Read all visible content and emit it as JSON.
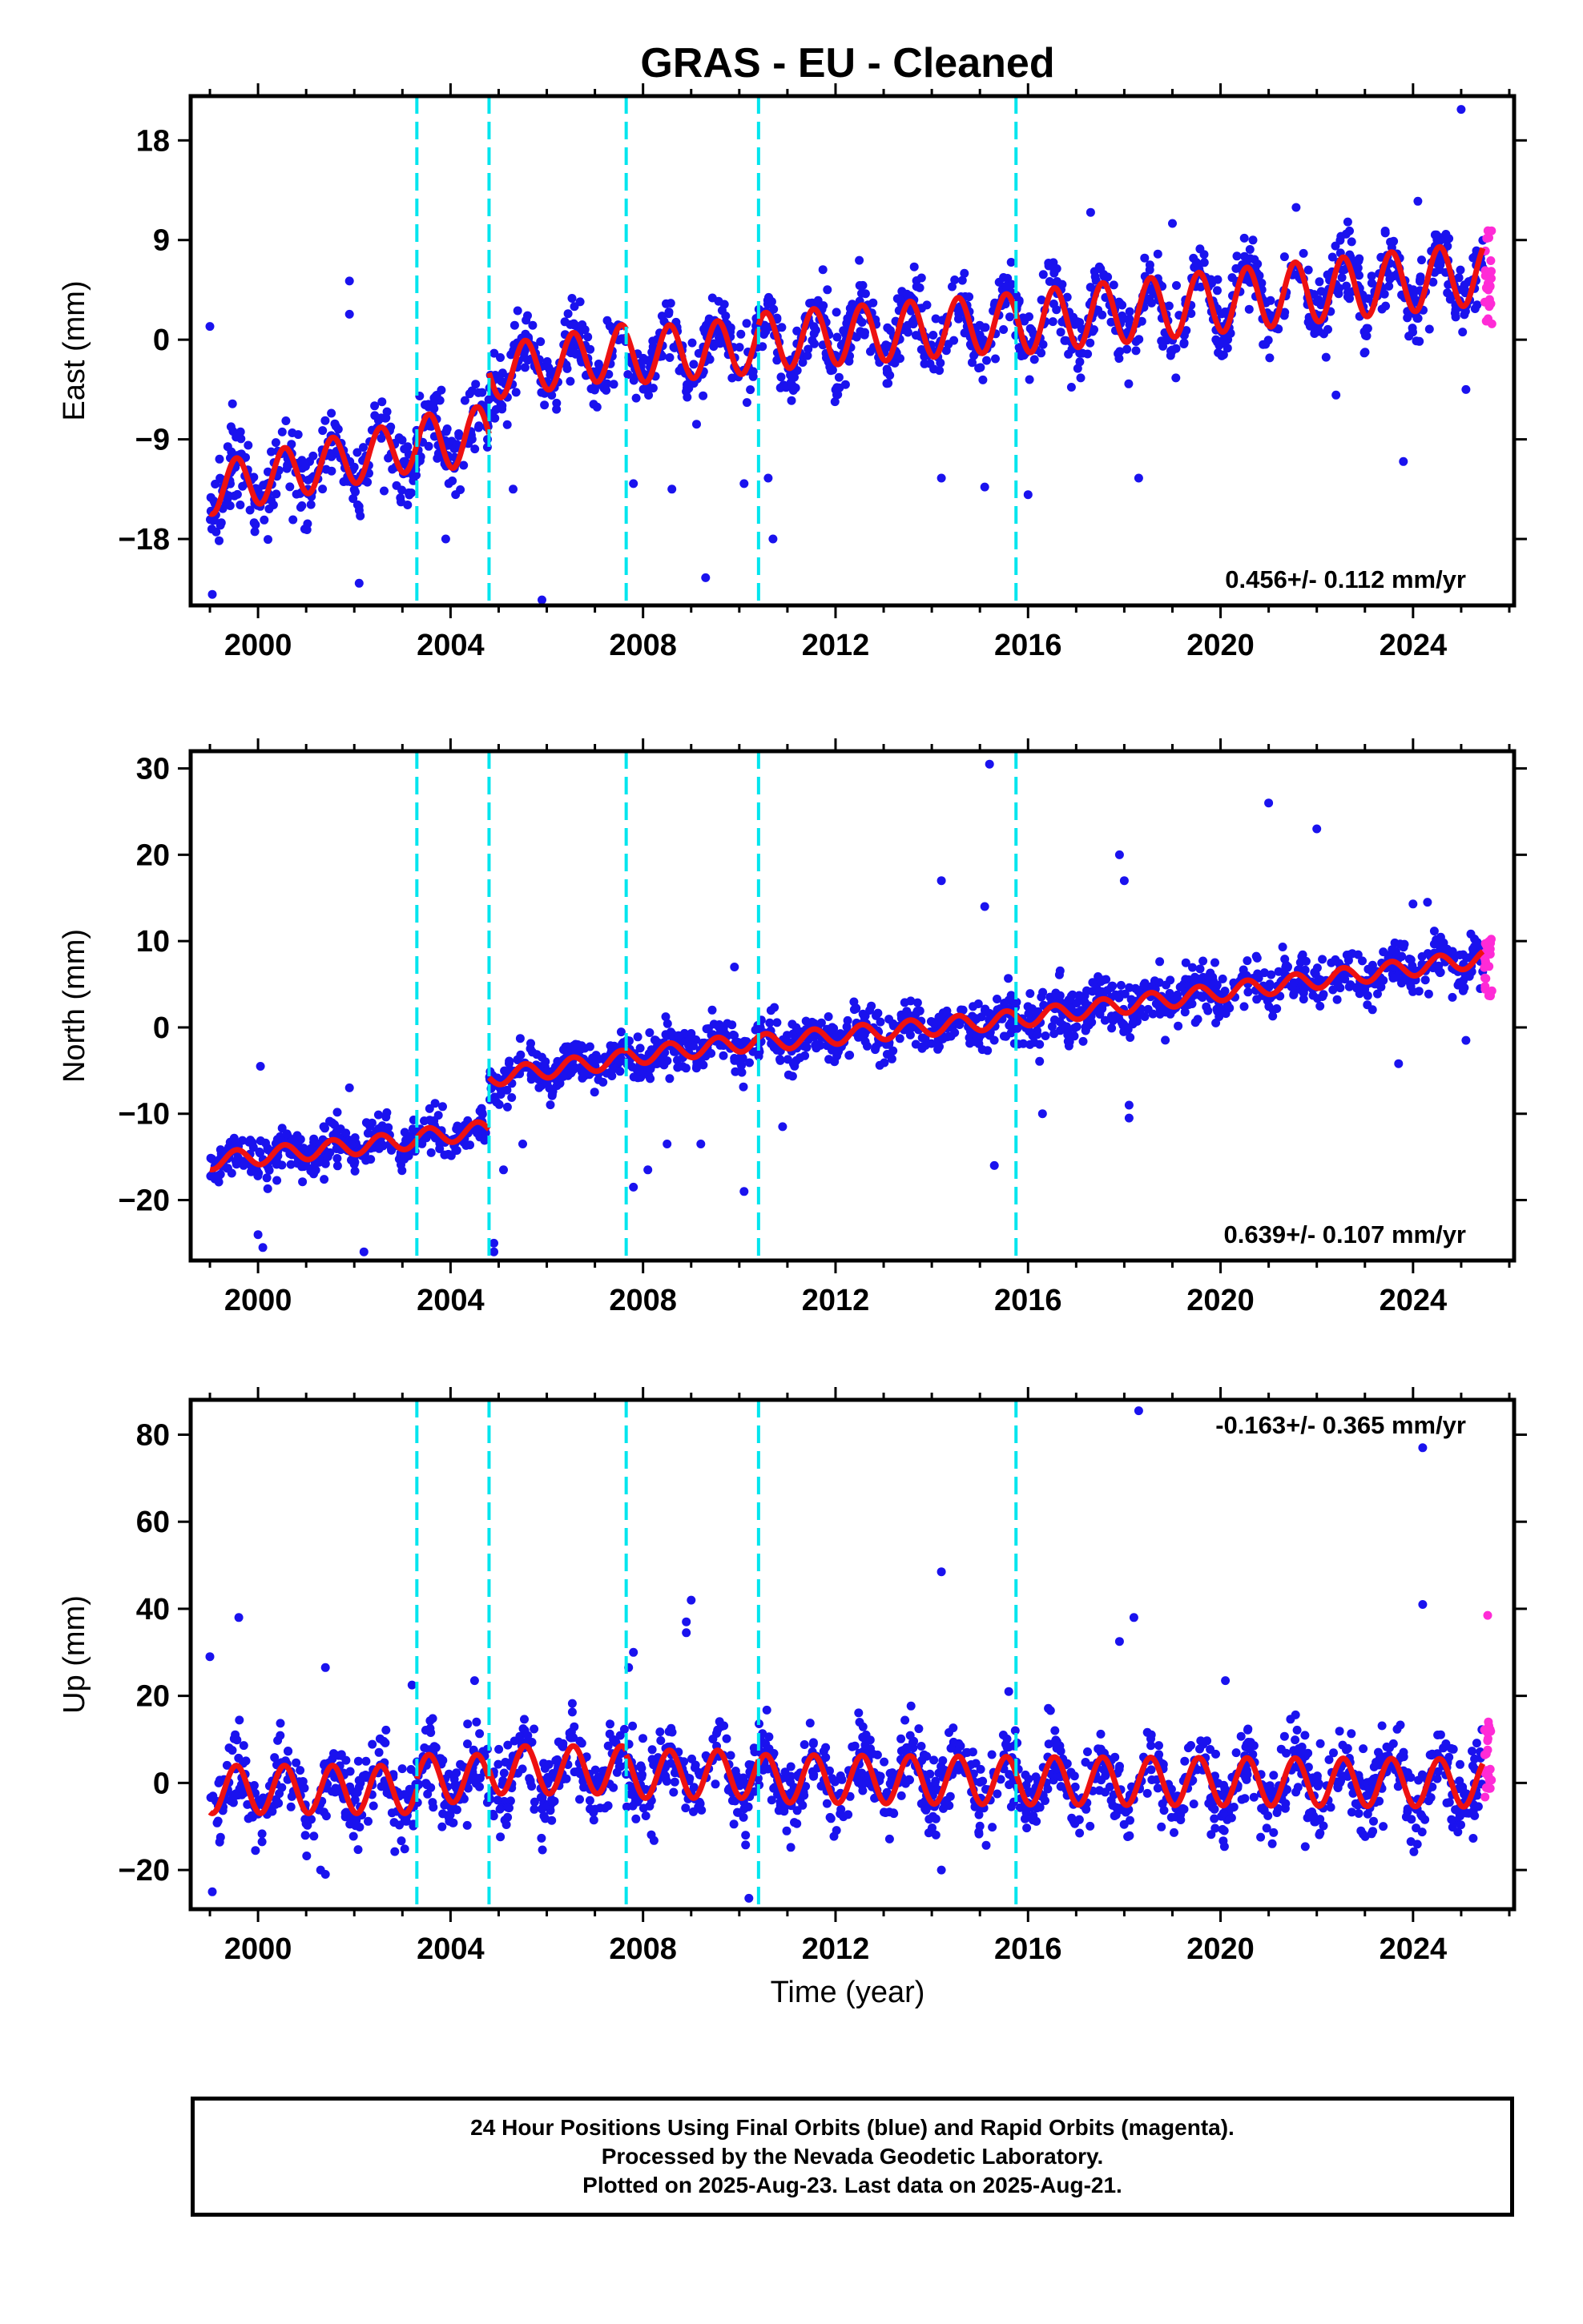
{
  "title": "GRAS  - EU - Cleaned",
  "xlabel": "Time (year)",
  "colors": {
    "final": "#1a12ee",
    "rapid": "#ff2bd6",
    "model": "#ee1111",
    "breaks": "#00e5ee",
    "axes": "#000000"
  },
  "caption": [
    "24 Hour Positions Using Final Orbits (blue) and Rapid Orbits (magenta).",
    "Processed by the Nevada Geodetic Laboratory.",
    "Plotted on 2025-Aug-23. Last data on 2025-Aug-21."
  ],
  "chart_data": [
    {
      "type": "scatter",
      "component": "east",
      "ylabel": "East (mm)",
      "velocity_label": "0.456+/- 0.112 mm/yr",
      "legend_position": "bottom-right",
      "xlim": [
        1998.6,
        2026.1
      ],
      "ylim": [
        -24,
        22
      ],
      "yticks": [
        -18,
        -9,
        0,
        9,
        18
      ],
      "xticks": [
        2000,
        2004,
        2008,
        2012,
        2016,
        2020,
        2024
      ],
      "break_lines": [
        2003.3,
        2004.8,
        2007.65,
        2010.4,
        2015.75
      ],
      "segments": [
        {
          "x0": 1999.0,
          "x1": 2003.3,
          "y0": -13.5,
          "y1": -9.5,
          "amp": 2.3,
          "scatter": 1.6
        },
        {
          "x0": 2003.3,
          "x1": 2004.8,
          "y0": -9.5,
          "y1": -8.5,
          "amp": 2.6,
          "scatter": 1.6
        },
        {
          "x0": 2004.8,
          "x1": 2007.65,
          "y0": -3.0,
          "y1": -1.0,
          "amp": 2.4,
          "scatter": 1.5
        },
        {
          "x0": 2007.65,
          "x1": 2010.4,
          "y0": -1.5,
          "y1": -0.5,
          "amp": 2.5,
          "scatter": 1.5
        },
        {
          "x0": 2010.4,
          "x1": 2015.75,
          "y0": -0.2,
          "y1": 1.6,
          "amp": 2.6,
          "scatter": 1.6
        },
        {
          "x0": 2015.75,
          "x1": 2025.45,
          "y0": 1.5,
          "y1": 6.0,
          "amp": 2.8,
          "scatter": 1.7
        }
      ],
      "outliers": [
        [
          1999.05,
          -23
        ],
        [
          1999.0,
          1.2
        ],
        [
          2001.9,
          5.3
        ],
        [
          2001.9,
          2.3
        ],
        [
          2002.0,
          -11.5
        ],
        [
          2002.1,
          -22
        ],
        [
          2003.9,
          -18
        ],
        [
          2005.3,
          -13.5
        ],
        [
          2005.9,
          -23.5
        ],
        [
          2007.8,
          -13
        ],
        [
          2008.6,
          -13.5
        ],
        [
          2009.3,
          -21.5
        ],
        [
          2010.1,
          -13
        ],
        [
          2010.6,
          -12.5
        ],
        [
          2010.7,
          -18
        ],
        [
          2014.2,
          -12.5
        ],
        [
          2015.1,
          -13.3
        ],
        [
          2016.0,
          -14
        ],
        [
          2017.3,
          11.5
        ],
        [
          2018.3,
          -12.5
        ],
        [
          2022.4,
          -5
        ],
        [
          2023.8,
          -11
        ],
        [
          2024.1,
          12.5
        ],
        [
          2025.0,
          20.8
        ],
        [
          2025.1,
          -4.5
        ],
        [
          2019.0,
          10.5
        ]
      ],
      "rapid": {
        "x0": 2025.48,
        "x1": 2025.64,
        "center": 6.0,
        "spread": 4.8
      }
    },
    {
      "type": "scatter",
      "component": "north",
      "ylabel": "North (mm)",
      "velocity_label": "0.639+/- 0.107 mm/yr",
      "legend_position": "bottom-right",
      "xlim": [
        1998.6,
        2026.1
      ],
      "ylim": [
        -27,
        32
      ],
      "yticks": [
        -20,
        -10,
        0,
        10,
        20,
        30
      ],
      "xticks": [
        2000,
        2004,
        2008,
        2012,
        2016,
        2020,
        2024
      ],
      "break_lines": [
        2003.3,
        2004.8,
        2007.65,
        2010.4,
        2015.75
      ],
      "segments": [
        {
          "x0": 1999.0,
          "x1": 2003.3,
          "y0": -15.5,
          "y1": -13.0,
          "amp": 1.0,
          "scatter": 1.3
        },
        {
          "x0": 2003.3,
          "x1": 2004.8,
          "y0": -12.8,
          "y1": -11.8,
          "amp": 1.0,
          "scatter": 1.3
        },
        {
          "x0": 2004.8,
          "x1": 2007.65,
          "y0": -5.8,
          "y1": -3.6,
          "amp": 1.0,
          "scatter": 1.3
        },
        {
          "x0": 2007.65,
          "x1": 2010.4,
          "y0": -3.4,
          "y1": -1.6,
          "amp": 1.0,
          "scatter": 1.3
        },
        {
          "x0": 2010.4,
          "x1": 2015.75,
          "y0": -1.8,
          "y1": 1.0,
          "amp": 1.0,
          "scatter": 1.4
        },
        {
          "x0": 2015.75,
          "x1": 2025.45,
          "y0": 1.0,
          "y1": 8.0,
          "amp": 1.0,
          "scatter": 1.5
        }
      ],
      "outliers": [
        [
          2000.0,
          -24
        ],
        [
          2000.05,
          -4.5
        ],
        [
          2000.1,
          -25.5
        ],
        [
          2002.2,
          -26
        ],
        [
          2001.9,
          -7
        ],
        [
          2004.9,
          -25
        ],
        [
          2004.9,
          -26
        ],
        [
          2005.1,
          -16.5
        ],
        [
          2005.5,
          -13.5
        ],
        [
          2007.8,
          -18.5
        ],
        [
          2008.1,
          -16.5
        ],
        [
          2008.5,
          -13.5
        ],
        [
          2009.2,
          -13.5
        ],
        [
          2009.9,
          7
        ],
        [
          2010.1,
          -19
        ],
        [
          2010.9,
          -11.5
        ],
        [
          2014.2,
          17
        ],
        [
          2015.1,
          14
        ],
        [
          2015.2,
          30.5
        ],
        [
          2015.3,
          -16
        ],
        [
          2016.3,
          -10
        ],
        [
          2017.9,
          20
        ],
        [
          2018.0,
          17
        ],
        [
          2018.1,
          -9
        ],
        [
          2018.1,
          -10.5
        ],
        [
          2021.0,
          26
        ],
        [
          2022.0,
          23
        ],
        [
          2024.0,
          14.3
        ],
        [
          2024.3,
          14.5
        ],
        [
          2023.7,
          -4.2
        ],
        [
          2025.1,
          -1.5
        ]
      ],
      "rapid": {
        "x0": 2025.48,
        "x1": 2025.64,
        "center": 7.0,
        "spread": 3.5
      }
    },
    {
      "type": "scatter",
      "component": "up",
      "ylabel": "Up (mm)",
      "velocity_label": "-0.163+/- 0.365 mm/yr",
      "legend_position": "top-right",
      "xlim": [
        1998.6,
        2026.1
      ],
      "ylim": [
        -29,
        88
      ],
      "yticks": [
        -20,
        0,
        20,
        40,
        60,
        80
      ],
      "xticks": [
        2000,
        2004,
        2008,
        2012,
        2016,
        2020,
        2024
      ],
      "break_lines": [
        2003.3,
        2004.8,
        2007.65,
        2010.4,
        2015.75
      ],
      "segments": [
        {
          "x0": 1999.0,
          "x1": 2003.3,
          "y0": -1.5,
          "y1": -1.5,
          "amp": 5.5,
          "scatter": 4.5
        },
        {
          "x0": 2003.3,
          "x1": 2004.8,
          "y0": 1.0,
          "y1": 1.0,
          "amp": 5.5,
          "scatter": 4.5
        },
        {
          "x0": 2004.8,
          "x1": 2007.65,
          "y0": 3.0,
          "y1": 3.0,
          "amp": 5.5,
          "scatter": 4.5
        },
        {
          "x0": 2007.65,
          "x1": 2010.4,
          "y0": 2.0,
          "y1": 2.0,
          "amp": 5.5,
          "scatter": 4.5
        },
        {
          "x0": 2010.4,
          "x1": 2015.75,
          "y0": 1.0,
          "y1": 0.5,
          "amp": 5.5,
          "scatter": 4.5
        },
        {
          "x0": 2015.75,
          "x1": 2025.45,
          "y0": 0.5,
          "y1": 0.0,
          "amp": 5.5,
          "scatter": 4.5
        }
      ],
      "outliers": [
        [
          1999.0,
          29
        ],
        [
          1999.05,
          -25
        ],
        [
          1999.6,
          38
        ],
        [
          2001.4,
          26.5
        ],
        [
          2001.3,
          -20
        ],
        [
          2001.4,
          -21
        ],
        [
          2003.2,
          22.5
        ],
        [
          2004.5,
          23.5
        ],
        [
          2007.8,
          30
        ],
        [
          2007.7,
          26.5
        ],
        [
          2008.9,
          37
        ],
        [
          2008.9,
          34.5
        ],
        [
          2009.0,
          42
        ],
        [
          2010.2,
          -26.5
        ],
        [
          2014.2,
          48.5
        ],
        [
          2014.2,
          -20
        ],
        [
          2015.6,
          21
        ],
        [
          2017.9,
          32.5
        ],
        [
          2018.2,
          38
        ],
        [
          2018.3,
          85.5
        ],
        [
          2020.1,
          23.5
        ],
        [
          2024.2,
          77
        ],
        [
          2024.2,
          41
        ]
      ],
      "rapid": {
        "x0": 2025.48,
        "x1": 2025.64,
        "center": 6.0,
        "spread": 9.5
      },
      "rapid_outliers": [
        [
          2025.55,
          38.5
        ]
      ]
    }
  ]
}
